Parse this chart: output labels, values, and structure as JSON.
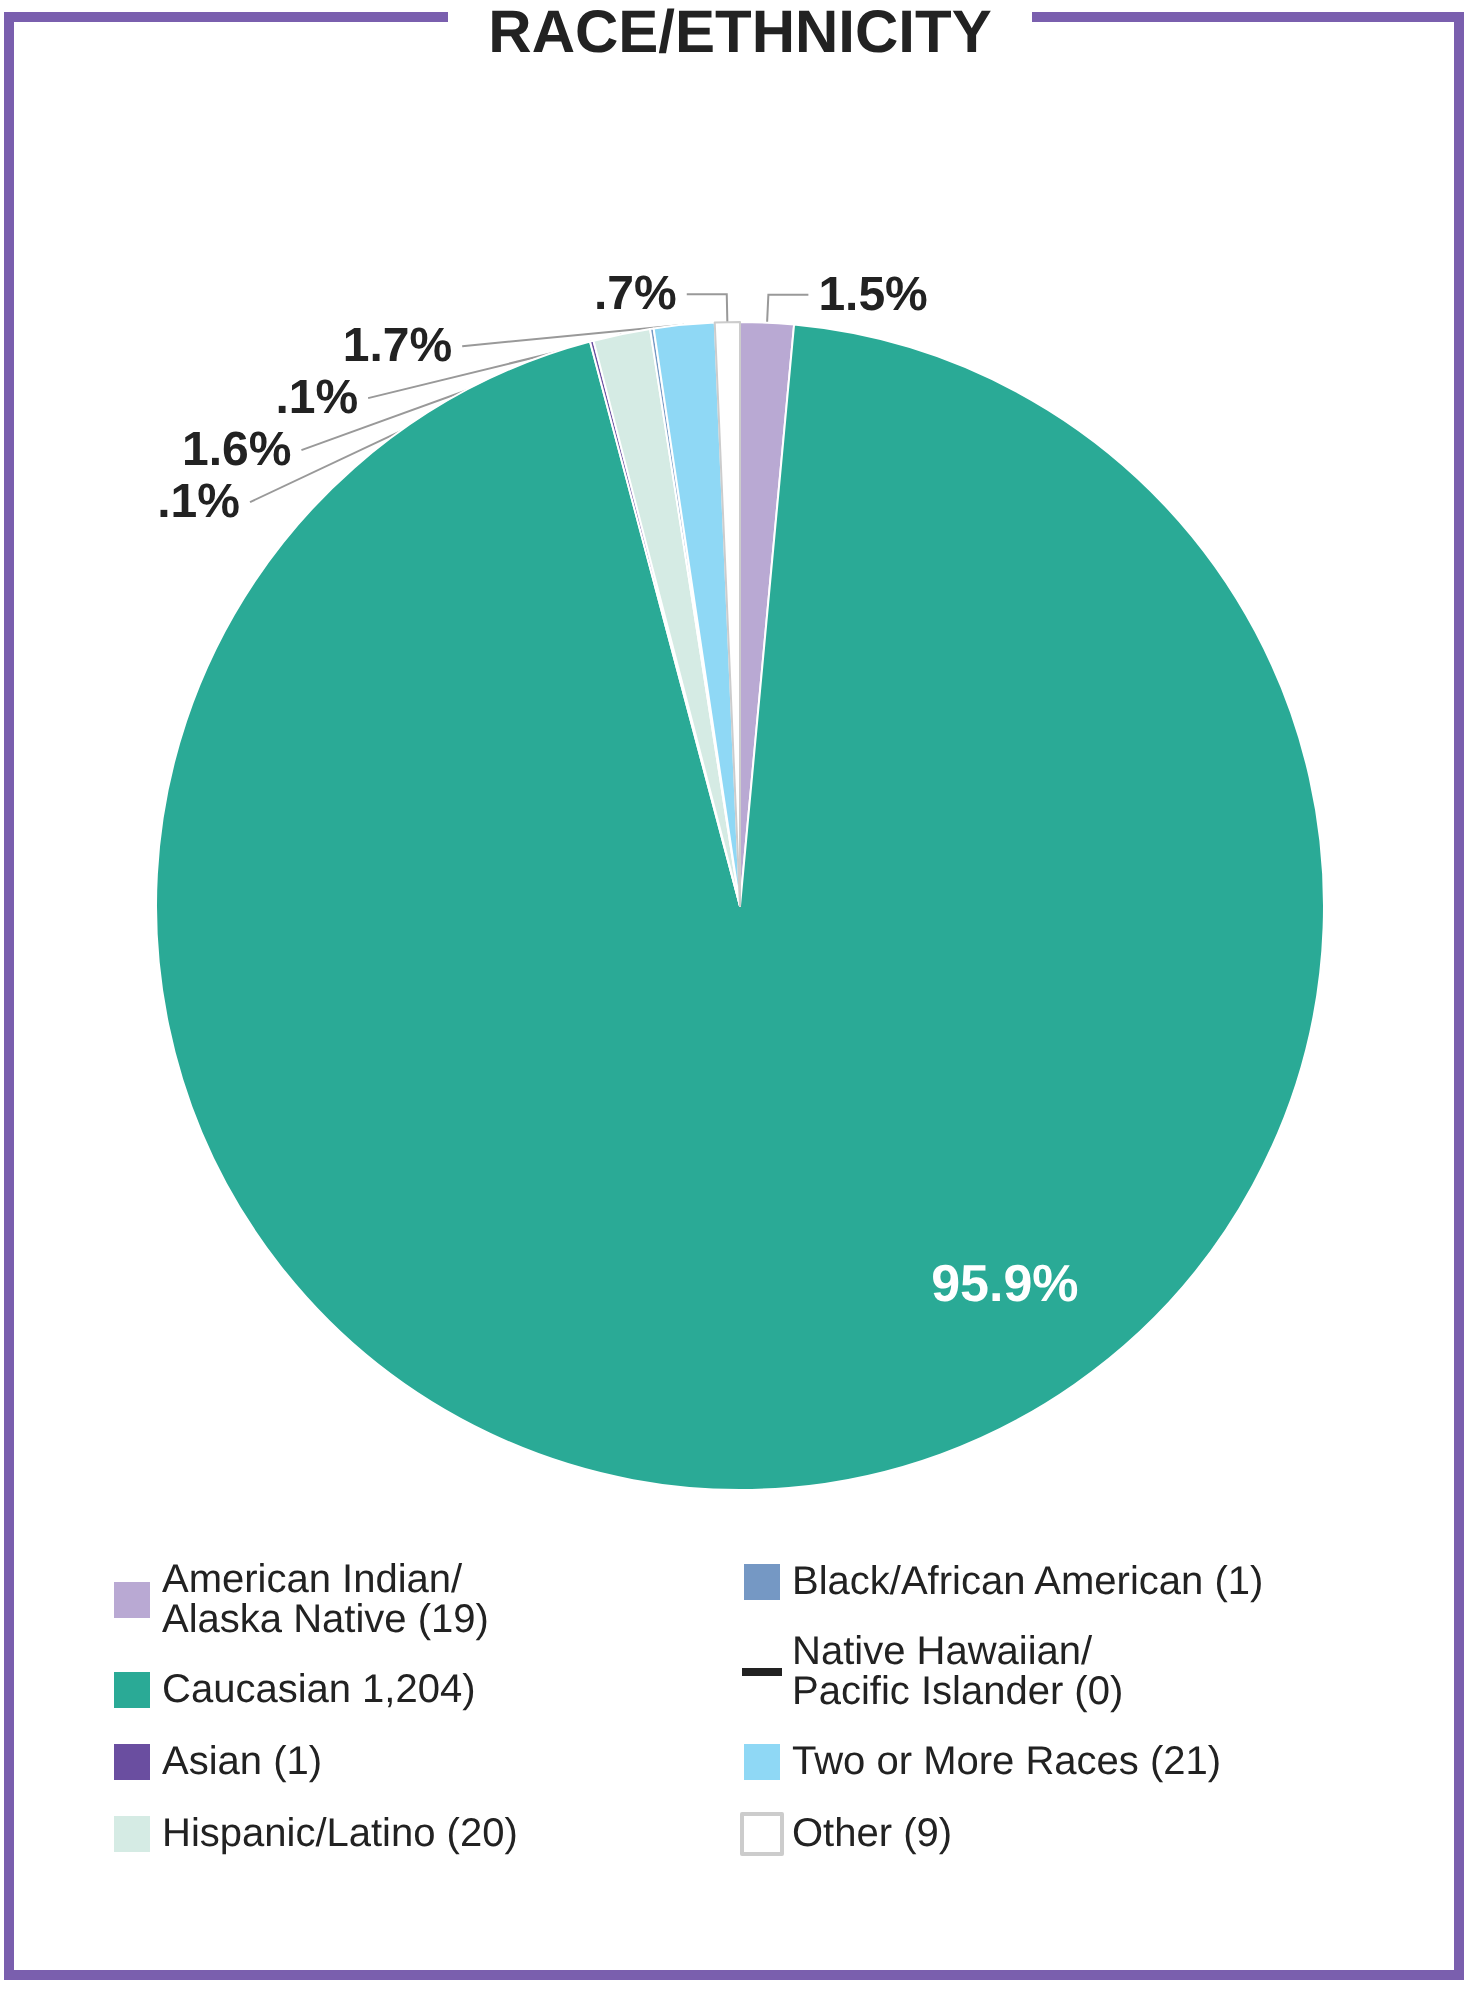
{
  "chart_data": {
    "type": "pie",
    "title": "RACE/ETHNICITY",
    "categories": [
      "American Indian/ Alaska Native (19)",
      "Caucasian 1,204)",
      "Asian (1)",
      "Hispanic/Latino (20)",
      "Black/African American (1)",
      "Native Hawaiian/ Pacific Islander (0)",
      "Two or More Races (21)",
      "Other (9)"
    ],
    "values": [
      1.5,
      95.9,
      0.1,
      1.6,
      0.1,
      0,
      1.7,
      0.7
    ],
    "value_labels": [
      "1.5%",
      "95.9%",
      ".1%",
      "1.6%",
      ".1%",
      null,
      "1.7%",
      ".7%"
    ],
    "colors": [
      "#b9a9d3",
      "#2aaa96",
      "#6a4ea0",
      "#d5ebe4",
      "#7598c4",
      "#222222",
      "#8fd8f5",
      "#ffffff"
    ],
    "legend": "bottom"
  }
}
